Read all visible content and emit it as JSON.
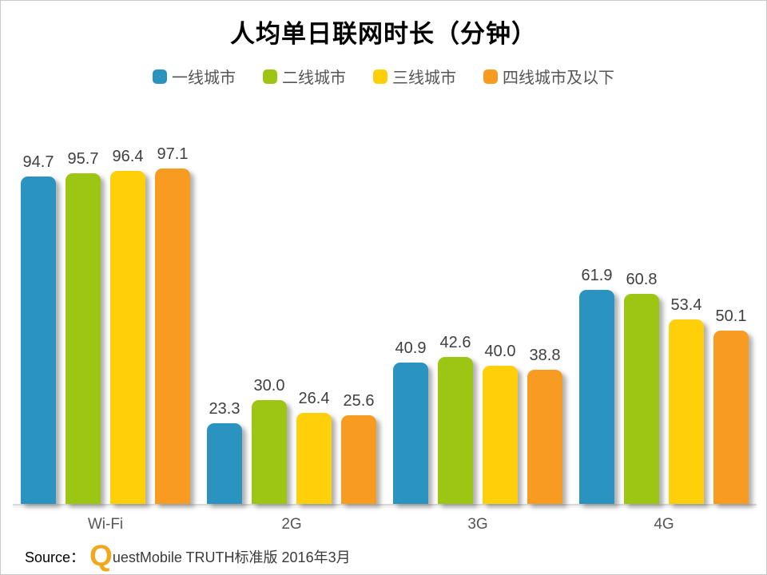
{
  "title": "人均单日联网时长（分钟）",
  "source": {
    "prefix": "Source：",
    "brand_initial": "Q",
    "rest": "uestMobile TRUTH标准版 2016年3月",
    "logo_color": "#f0a81e"
  },
  "colors": {
    "tier1_blue": "#2b93c0",
    "tier2_green": "#9dc513",
    "tier3_yellow": "#ffcf0a",
    "tier4_orange": "#f79c21",
    "axis_line": "#d8d8d8",
    "value_label": "#3f3f3f",
    "category_label": "#555555"
  },
  "chart_data": {
    "type": "bar",
    "title": "人均单日联网时长（分钟）",
    "categories": [
      "Wi-Fi",
      "2G",
      "3G",
      "4G"
    ],
    "series": [
      {
        "name": "一线城市",
        "color": "#2b93c0",
        "values": [
          94.7,
          23.3,
          40.9,
          61.9
        ]
      },
      {
        "name": "二线城市",
        "color": "#9dc513",
        "values": [
          95.7,
          30.0,
          42.6,
          60.8
        ]
      },
      {
        "name": "三线城市",
        "color": "#ffcf0a",
        "values": [
          96.4,
          26.4,
          40.0,
          53.4
        ]
      },
      {
        "name": "四线城市及以下",
        "color": "#f79c21",
        "values": [
          97.1,
          25.6,
          38.8,
          50.1
        ]
      }
    ],
    "value_labels": true,
    "value_decimals": 1,
    "xlabel": "",
    "ylabel": "",
    "ylim": [
      0,
      105
    ],
    "grid": false,
    "legend_position": "top",
    "y_axis_visible": false
  }
}
